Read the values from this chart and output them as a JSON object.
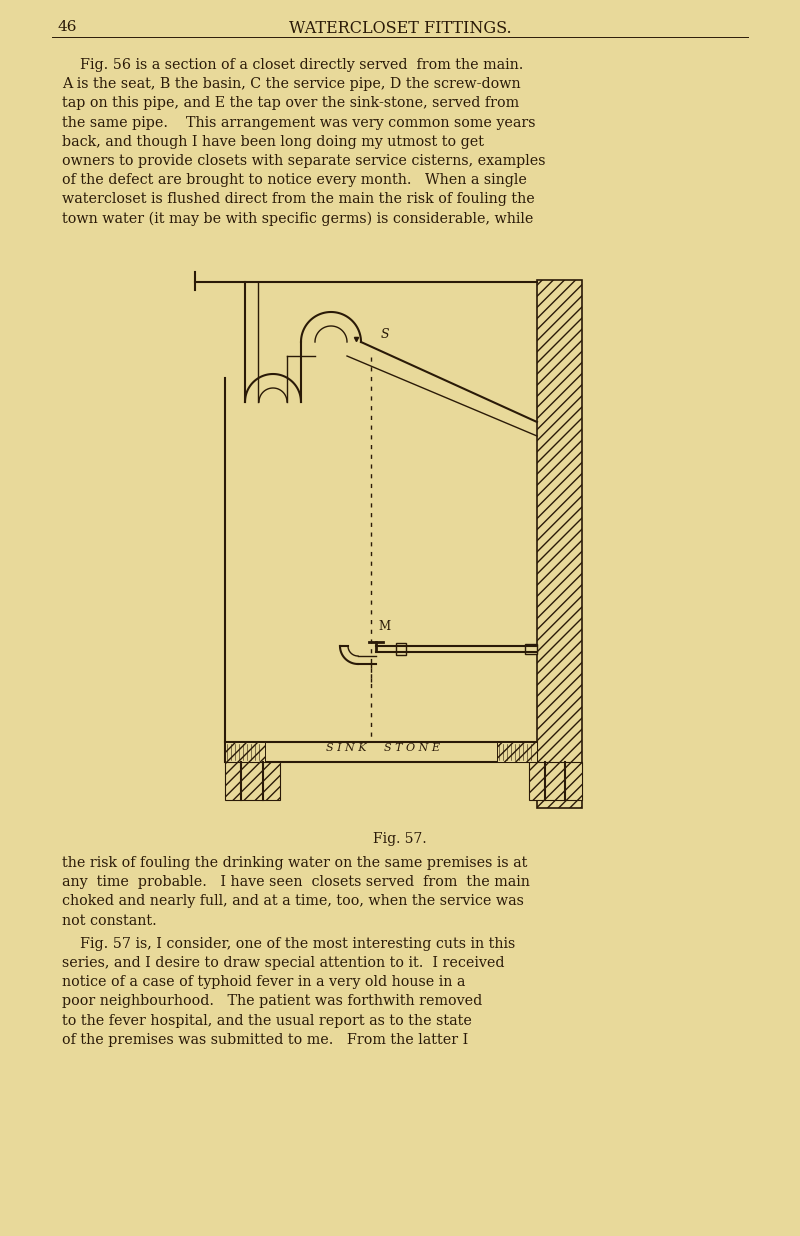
{
  "page_bg": "#e8d99a",
  "text_color": "#2a1a08",
  "page_number": "46",
  "page_header": "WATERCLOSET FITTINGS.",
  "para1_lines": [
    "    Fig. 56 is a section of a closet directly served  from the main.",
    "A is the seat, B the basin, C the service pipe, D the screw-down",
    "tap on this pipe, and E the tap over the sink-stone, served from",
    "the same pipe.    This arrangement was very common some years",
    "back, and though I have been long doing my utmost to get",
    "owners to provide closets with separate service cisterns, examples",
    "of the defect are brought to notice every month.   When a single",
    "watercloset is flushed direct from the main the risk of fouling the",
    "town water (it may be with specific germs) is considerable, while"
  ],
  "para2_lines": [
    "the risk of fouling the drinking water on the same premises is at",
    "any  time  probable.   I have seen  closets served  from  the main",
    "choked and nearly full, and at a time, too, when the service was",
    "not constant."
  ],
  "para3_lines": [
    "    Fig. 57 is, I consider, one of the most interesting cuts in this",
    "series, and I desire to draw special attention to it.  I received",
    "notice of a case of typhoid fever in a very old house in a",
    "poor neighbourhood.   The patient was forthwith removed",
    "to the fever hospital, and the usual report as to the state",
    "of the premises was submitted to me.   From the latter I"
  ],
  "fig_caption": "Fig. 57.",
  "lc": "#2a1a08"
}
